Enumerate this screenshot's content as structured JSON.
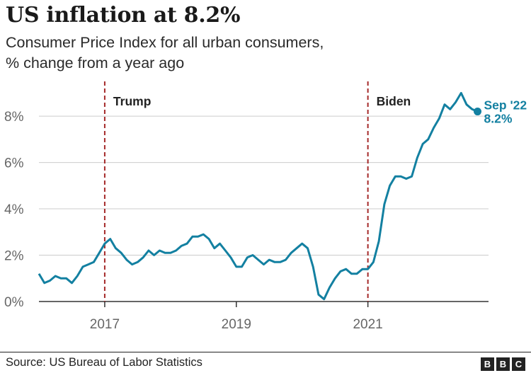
{
  "header": {
    "title": "US inflation at 8.2%",
    "subtitle_line1": "Consumer Price Index for all urban consumers,",
    "subtitle_line2": "% change from a year ago"
  },
  "footer": {
    "source": "Source: US Bureau of Labor Statistics",
    "logo_letters": [
      "B",
      "B",
      "C"
    ]
  },
  "colors": {
    "line": "#1380a1",
    "marker": "#a52a2a",
    "grid": "#cccccc",
    "axis": "#333333"
  },
  "chart_data": {
    "type": "line",
    "title": "US inflation at 8.2%",
    "xlabel": "",
    "ylabel": "",
    "ylim": [
      0,
      9.5
    ],
    "xlim": [
      "2016-01",
      "2022-11"
    ],
    "y_ticks": [
      0,
      2,
      4,
      6,
      8
    ],
    "y_tick_labels": [
      "0%",
      "2%",
      "4%",
      "6%",
      "8%"
    ],
    "x_ticks": [
      "2017-01",
      "2019-01",
      "2021-01"
    ],
    "x_tick_labels": [
      "2017",
      "2019",
      "2021"
    ],
    "grid": true,
    "series": [
      {
        "x": [
          "2016-01",
          "2016-02",
          "2016-03",
          "2016-04",
          "2016-05",
          "2016-06",
          "2016-07",
          "2016-08",
          "2016-09",
          "2016-10",
          "2016-11",
          "2016-12",
          "2017-01",
          "2017-02",
          "2017-03",
          "2017-04",
          "2017-05",
          "2017-06",
          "2017-07",
          "2017-08",
          "2017-09",
          "2017-10",
          "2017-11",
          "2017-12",
          "2018-01",
          "2018-02",
          "2018-03",
          "2018-04",
          "2018-05",
          "2018-06",
          "2018-07",
          "2018-08",
          "2018-09",
          "2018-10",
          "2018-11",
          "2018-12",
          "2019-01",
          "2019-02",
          "2019-03",
          "2019-04",
          "2019-05",
          "2019-06",
          "2019-07",
          "2019-08",
          "2019-09",
          "2019-10",
          "2019-11",
          "2019-12",
          "2020-01",
          "2020-02",
          "2020-03",
          "2020-04",
          "2020-05",
          "2020-06",
          "2020-07",
          "2020-08",
          "2020-09",
          "2020-10",
          "2020-11",
          "2020-12",
          "2021-01",
          "2021-02",
          "2021-03",
          "2021-04",
          "2021-05",
          "2021-06",
          "2021-07",
          "2021-08",
          "2021-09",
          "2021-10",
          "2021-11",
          "2021-12",
          "2022-01",
          "2022-02",
          "2022-03",
          "2022-04",
          "2022-05",
          "2022-06",
          "2022-07",
          "2022-08",
          "2022-09"
        ],
        "values": [
          1.2,
          0.8,
          0.9,
          1.1,
          1.0,
          1.0,
          0.8,
          1.1,
          1.5,
          1.6,
          1.7,
          2.1,
          2.5,
          2.7,
          2.3,
          2.1,
          1.8,
          1.6,
          1.7,
          1.9,
          2.2,
          2.0,
          2.2,
          2.1,
          2.1,
          2.2,
          2.4,
          2.5,
          2.8,
          2.8,
          2.9,
          2.7,
          2.3,
          2.5,
          2.2,
          1.9,
          1.5,
          1.5,
          1.9,
          2.0,
          1.8,
          1.6,
          1.8,
          1.7,
          1.7,
          1.8,
          2.1,
          2.3,
          2.5,
          2.3,
          1.5,
          0.3,
          0.1,
          0.6,
          1.0,
          1.3,
          1.4,
          1.2,
          1.2,
          1.4,
          1.4,
          1.7,
          2.6,
          4.2,
          5.0,
          5.4,
          5.4,
          5.3,
          5.4,
          6.2,
          6.8,
          7.0,
          7.5,
          7.9,
          8.5,
          8.3,
          8.6,
          9.0,
          8.5,
          8.3,
          8.2
        ]
      }
    ],
    "annotations": [
      {
        "x": "2017-01",
        "text": "Trump"
      },
      {
        "x": "2021-01",
        "text": "Biden"
      }
    ],
    "end_label": {
      "line1": "Sep '22",
      "line2": "8.2%"
    }
  }
}
